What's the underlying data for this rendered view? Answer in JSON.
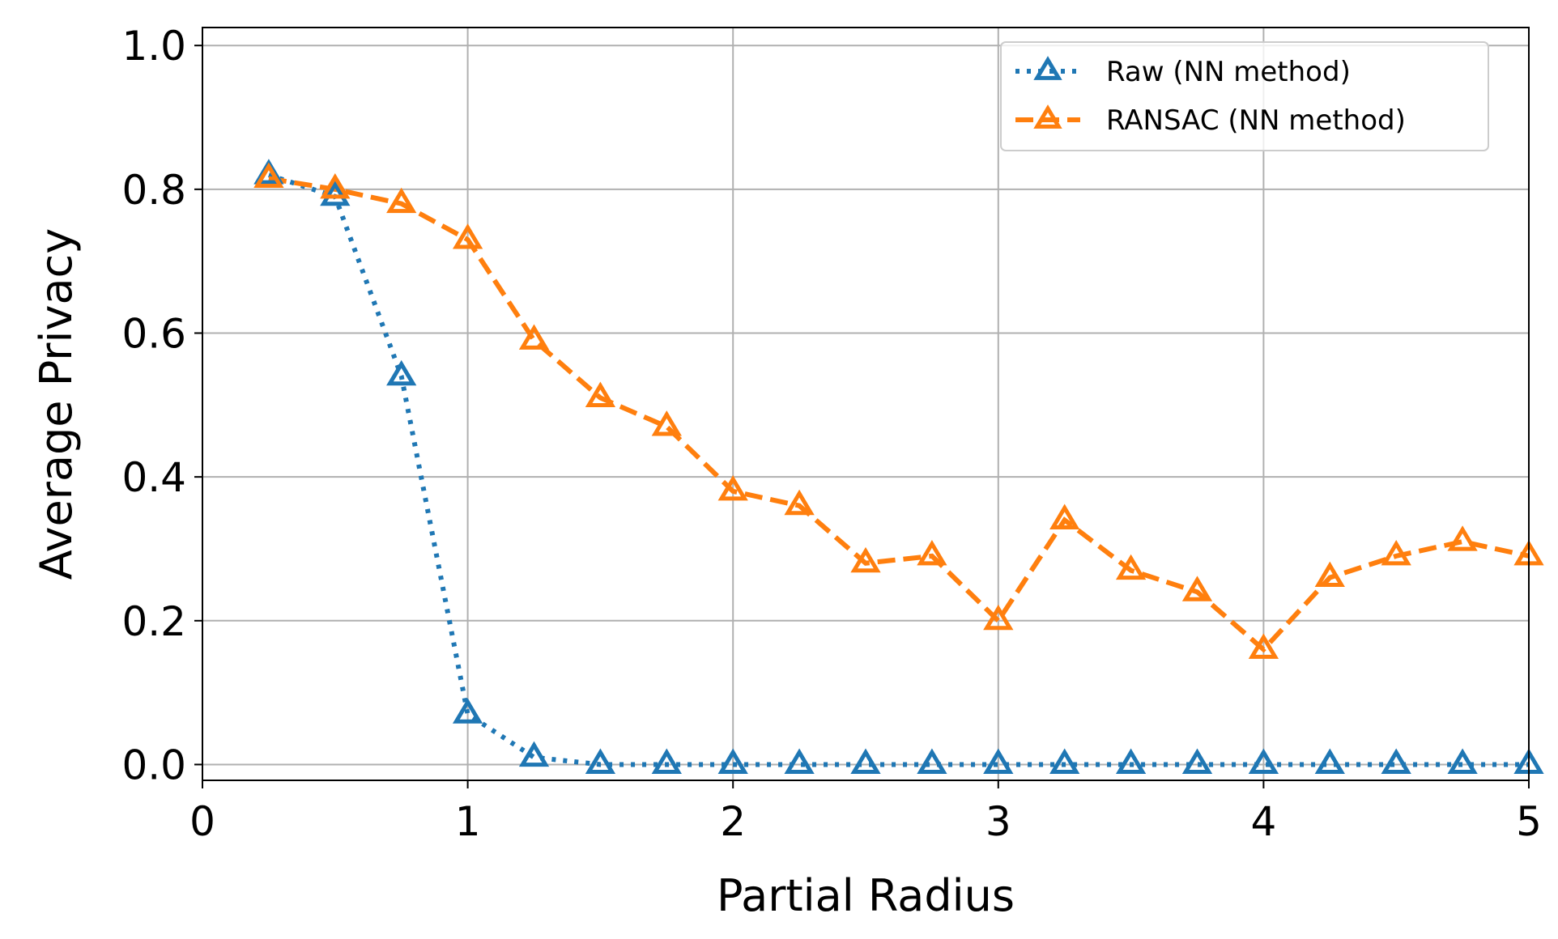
{
  "chart_data": {
    "type": "line",
    "title": "",
    "xlabel": "Partial Radius",
    "ylabel": "Average Privacy",
    "xlim": [
      0,
      5
    ],
    "ylim": [
      -0.022,
      1.025
    ],
    "xticks": [
      "0",
      "1",
      "2",
      "3",
      "4",
      "5"
    ],
    "yticks": [
      "0.0",
      "0.2",
      "0.4",
      "0.6",
      "0.8",
      "1.0"
    ],
    "grid": true,
    "legend_position": "top-right",
    "x": [
      0.25,
      0.5,
      0.75,
      1.0,
      1.25,
      1.5,
      1.75,
      2.0,
      2.25,
      2.5,
      2.75,
      3.0,
      3.25,
      3.5,
      3.75,
      4.0,
      4.25,
      4.5,
      4.75,
      5.0
    ],
    "series": [
      {
        "name": "Raw (NN method)",
        "color": "#1f77b4",
        "line_style": "dotted",
        "marker": "triangle",
        "values": [
          0.82,
          0.79,
          0.54,
          0.07,
          0.01,
          0.0,
          0.0,
          0.0,
          0.0,
          0.0,
          0.0,
          0.0,
          0.0,
          0.0,
          0.0,
          0.0,
          0.0,
          0.0,
          0.0,
          0.0
        ]
      },
      {
        "name": "RANSAC (NN method)",
        "color": "#ff7f0e",
        "line_style": "dashed",
        "marker": "triangle",
        "values": [
          0.815,
          0.8,
          0.78,
          0.73,
          0.59,
          0.51,
          0.47,
          0.38,
          0.36,
          0.28,
          0.29,
          0.2,
          0.34,
          0.27,
          0.24,
          0.16,
          0.26,
          0.29,
          0.31,
          0.29
        ]
      }
    ]
  }
}
